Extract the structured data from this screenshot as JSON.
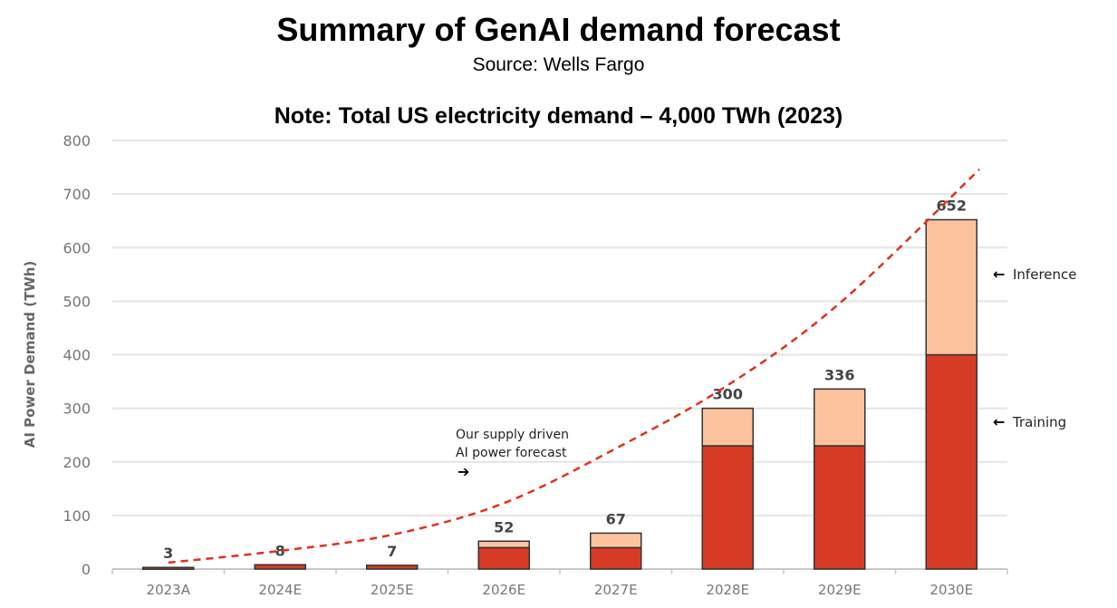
{
  "chart_data": {
    "type": "bar",
    "stacked": true,
    "title": "Summary of GenAI demand forecast",
    "subtitle": "Source: Wells Fargo",
    "note": "Note: Total US electricity demand – 4,000 TWh (2023)",
    "xlabel": "",
    "ylabel": "AI Power Demand (TWh)",
    "ylim": [
      0,
      800
    ],
    "yticks": [
      0,
      100,
      200,
      300,
      400,
      500,
      600,
      700,
      800
    ],
    "grid": true,
    "categories": [
      "2023A",
      "2024E",
      "2025E",
      "2026E",
      "2027E",
      "2028E",
      "2029E",
      "2030E"
    ],
    "series": [
      {
        "name": "Training",
        "color": "#d63c25",
        "values": [
          3,
          8,
          7,
          40,
          40,
          230,
          230,
          400
        ]
      },
      {
        "name": "Inference",
        "color": "#fcc39e",
        "values": [
          0,
          0,
          0,
          12,
          27,
          70,
          106,
          252
        ]
      }
    ],
    "totals": [
      3,
      8,
      7,
      52,
      67,
      300,
      336,
      652
    ],
    "forecast_line": {
      "name": "Our supply driven AI power forecast",
      "color": "#e0301e",
      "x": [
        0,
        1,
        2,
        3,
        4,
        5,
        6,
        7.25
      ],
      "values": [
        12,
        34,
        64,
        123,
        225,
        343,
        496,
        746
      ]
    },
    "annotations": {
      "forecast_line1": "Our supply driven",
      "forecast_line2": "AI power forecast",
      "inference": "Inference",
      "training": "Training"
    }
  }
}
